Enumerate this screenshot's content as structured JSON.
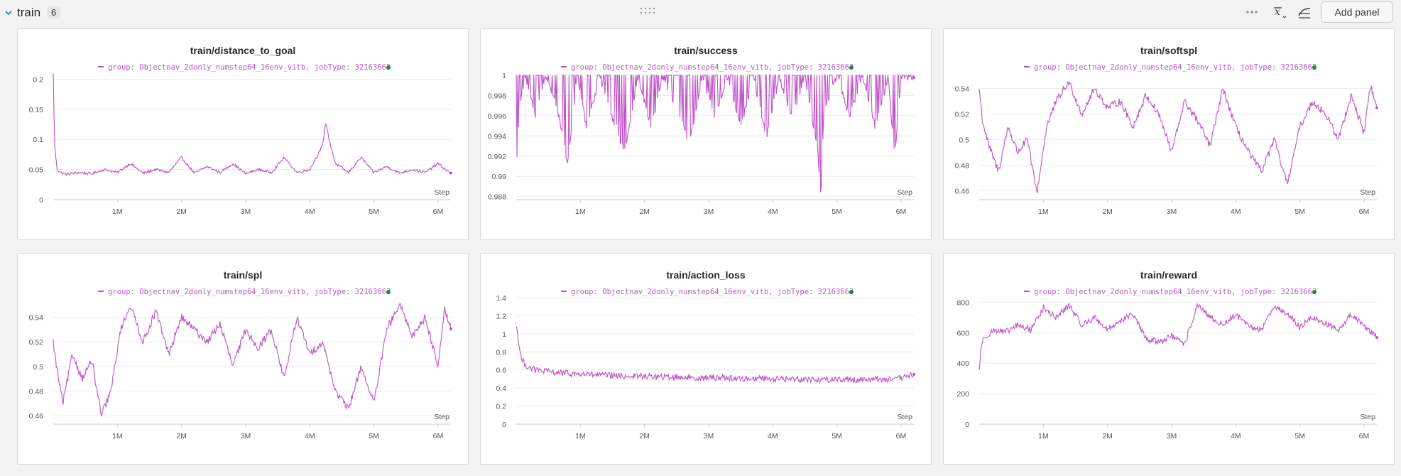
{
  "section": {
    "title": "train",
    "count": "6",
    "add_panel_label": "Add panel"
  },
  "colors": {
    "series": "#c052c8",
    "status_dot": "#1a8a2e"
  },
  "legend": {
    "label": "group: Objectnav_2donly_numstep64_16env_vitb, jobType: 32163663"
  },
  "panels": [
    {
      "title": "train/distance_to_goal",
      "chart_data": {
        "type": "line",
        "x_label": "Step",
        "x_ticks": [
          "1M",
          "2M",
          "3M",
          "4M",
          "5M",
          "6M"
        ],
        "x_range": [
          0,
          6200000
        ],
        "y_ticks": [
          "0.2",
          "0.15",
          "0.1",
          "0.05",
          "0"
        ],
        "y_range": [
          0,
          0.21
        ],
        "series": [
          {
            "name": "group: Objectnav_2donly_numstep64_16env_vitb, jobType: 32163663",
            "x": [
              0,
              20000,
              60000,
              120000,
              200000,
              400000,
              600000,
              800000,
              1000000,
              1200000,
              1400000,
              1600000,
              1800000,
              2000000,
              2200000,
              2400000,
              2600000,
              2800000,
              3000000,
              3200000,
              3400000,
              3600000,
              3800000,
              4000000,
              4200000,
              4250000,
              4300000,
              4400000,
              4600000,
              4800000,
              5000000,
              5200000,
              5400000,
              5600000,
              5800000,
              6000000,
              6200000
            ],
            "y": [
              0.21,
              0.09,
              0.05,
              0.045,
              0.042,
              0.045,
              0.043,
              0.05,
              0.045,
              0.06,
              0.044,
              0.05,
              0.045,
              0.07,
              0.044,
              0.055,
              0.045,
              0.06,
              0.043,
              0.05,
              0.045,
              0.07,
              0.045,
              0.05,
              0.09,
              0.13,
              0.1,
              0.06,
              0.045,
              0.07,
              0.045,
              0.055,
              0.044,
              0.05,
              0.045,
              0.06,
              0.043
            ]
          }
        ]
      }
    },
    {
      "title": "train/success",
      "chart_data": {
        "type": "line",
        "x_label": "Step",
        "x_ticks": [
          "1M",
          "2M",
          "3M",
          "4M",
          "5M",
          "6M"
        ],
        "x_range": [
          0,
          6200000
        ],
        "y_ticks": [
          "1",
          "0.998",
          "0.996",
          "0.994",
          "0.992",
          "0.99",
          "0.988"
        ],
        "y_range": [
          0.9877,
          1.0002
        ],
        "series": [
          {
            "name": "group: Objectnav_2donly_numstep64_16env_vitb, jobType: 32163663",
            "x": [
              0,
              50000,
              150000,
              300000,
              450000,
              600000,
              800000,
              950000,
              1100000,
              1300000,
              1500000,
              1700000,
              1900000,
              2100000,
              2300000,
              2500000,
              2700000,
              2900000,
              3100000,
              3300000,
              3500000,
              3700000,
              3900000,
              4100000,
              4300000,
              4500000,
              4700000,
              4750000,
              4800000,
              5000000,
              5200000,
              5400000,
              5600000,
              5800000,
              5900000,
              6000000,
              6200000
            ],
            "y": [
              0.9903,
              0.997,
              1.0,
              0.996,
              1.0,
              0.998,
              0.9916,
              1.0,
              0.995,
              1.0,
              0.996,
              0.9925,
              1.0,
              0.995,
              1.0,
              0.997,
              0.9932,
              1.0,
              0.996,
              1.0,
              0.995,
              1.0,
              0.994,
              1.0,
              0.996,
              1.0,
              0.993,
              0.988,
              0.997,
              1.0,
              0.996,
              1.0,
              0.995,
              1.0,
              0.9918,
              1.0,
              1.0
            ]
          }
        ]
      }
    },
    {
      "title": "train/softspl",
      "chart_data": {
        "type": "line",
        "x_label": "Step",
        "x_ticks": [
          "1M",
          "2M",
          "3M",
          "4M",
          "5M",
          "6M"
        ],
        "x_range": [
          0,
          6200000
        ],
        "y_ticks": [
          "0.54",
          "0.52",
          "0.5",
          "0.48",
          "0.46"
        ],
        "y_range": [
          0.453,
          0.552
        ],
        "series": [
          {
            "name": "group: Objectnav_2donly_numstep64_16env_vitb, jobType: 32163663",
            "x": [
              0,
              50000,
              150000,
              300000,
              450000,
              600000,
              750000,
              900000,
              1050000,
              1200000,
              1400000,
              1600000,
              1800000,
              2000000,
              2200000,
              2400000,
              2600000,
              2800000,
              3000000,
              3200000,
              3400000,
              3600000,
              3800000,
              4000000,
              4200000,
              4400000,
              4600000,
              4800000,
              5000000,
              5200000,
              5400000,
              5600000,
              5800000,
              6000000,
              6100000,
              6200000
            ],
            "y": [
              0.54,
              0.515,
              0.495,
              0.475,
              0.51,
              0.49,
              0.5,
              0.458,
              0.51,
              0.53,
              0.545,
              0.52,
              0.54,
              0.525,
              0.53,
              0.51,
              0.535,
              0.52,
              0.49,
              0.53,
              0.515,
              0.495,
              0.54,
              0.51,
              0.49,
              0.475,
              0.5,
              0.465,
              0.51,
              0.53,
              0.52,
              0.5,
              0.535,
              0.505,
              0.543,
              0.524
            ]
          }
        ]
      }
    },
    {
      "title": "train/spl",
      "chart_data": {
        "type": "line",
        "x_label": "Step",
        "x_ticks": [
          "1M",
          "2M",
          "3M",
          "4M",
          "5M",
          "6M"
        ],
        "x_range": [
          0,
          6200000
        ],
        "y_ticks": [
          "0.54",
          "0.52",
          "0.5",
          "0.48",
          "0.46"
        ],
        "y_range": [
          0.453,
          0.556
        ],
        "series": [
          {
            "name": "group: Objectnav_2donly_numstep64_16env_vitb, jobType: 32163663",
            "x": [
              0,
              50000,
              150000,
              300000,
              450000,
              600000,
              750000,
              900000,
              1050000,
              1200000,
              1400000,
              1600000,
              1800000,
              2000000,
              2200000,
              2400000,
              2600000,
              2800000,
              3000000,
              3200000,
              3400000,
              3600000,
              3800000,
              4000000,
              4200000,
              4400000,
              4600000,
              4800000,
              5000000,
              5200000,
              5400000,
              5600000,
              5800000,
              6000000,
              6100000,
              6200000
            ],
            "y": [
              0.52,
              0.5,
              0.47,
              0.51,
              0.49,
              0.505,
              0.46,
              0.48,
              0.53,
              0.55,
              0.52,
              0.545,
              0.51,
              0.54,
              0.53,
              0.52,
              0.535,
              0.5,
              0.53,
              0.515,
              0.53,
              0.49,
              0.54,
              0.51,
              0.52,
              0.48,
              0.465,
              0.5,
              0.47,
              0.53,
              0.55,
              0.525,
              0.54,
              0.5,
              0.548,
              0.53
            ]
          }
        ]
      }
    },
    {
      "title": "train/action_loss",
      "chart_data": {
        "type": "line",
        "x_label": "Step",
        "x_ticks": [
          "1M",
          "2M",
          "3M",
          "4M",
          "5M",
          "6M"
        ],
        "x_range": [
          0,
          6200000
        ],
        "y_ticks": [
          "1.4",
          "1.2",
          "1",
          "0.8",
          "0.6",
          "0.4",
          "0.2",
          "0"
        ],
        "y_range": [
          0,
          1.4
        ],
        "series": [
          {
            "name": "group: Objectnav_2donly_numstep64_16env_vitb, jobType: 32163663",
            "x": [
              0,
              30000,
              80000,
              150000,
              300000,
              500000,
              800000,
              1100000,
              1400000,
              1700000,
              2000000,
              2300000,
              2600000,
              2900000,
              3200000,
              3500000,
              3800000,
              4100000,
              4400000,
              4700000,
              5000000,
              5300000,
              5600000,
              5900000,
              6200000
            ],
            "y": [
              1.1,
              0.95,
              0.72,
              0.65,
              0.6,
              0.58,
              0.56,
              0.55,
              0.54,
              0.53,
              0.53,
              0.52,
              0.52,
              0.51,
              0.52,
              0.5,
              0.51,
              0.5,
              0.5,
              0.49,
              0.5,
              0.49,
              0.5,
              0.49,
              0.55
            ]
          }
        ]
      }
    },
    {
      "title": "train/reward",
      "chart_data": {
        "type": "line",
        "x_label": "Step",
        "x_ticks": [
          "1M",
          "2M",
          "3M",
          "4M",
          "5M",
          "6M"
        ],
        "x_range": [
          0,
          6200000
        ],
        "y_ticks": [
          "800",
          "600",
          "400",
          "200",
          "0"
        ],
        "y_range": [
          0,
          830
        ],
        "series": [
          {
            "name": "group: Objectnav_2donly_numstep64_16env_vitb, jobType: 32163663",
            "x": [
              0,
              30000,
              100000,
              250000,
              400000,
              600000,
              800000,
              1000000,
              1200000,
              1400000,
              1600000,
              1800000,
              2000000,
              2200000,
              2400000,
              2600000,
              2800000,
              3000000,
              3200000,
              3400000,
              3600000,
              3800000,
              4000000,
              4200000,
              4400000,
              4600000,
              4800000,
              5000000,
              5200000,
              5400000,
              5600000,
              5800000,
              6000000,
              6200000
            ],
            "y": [
              350,
              520,
              580,
              620,
              600,
              650,
              620,
              760,
              700,
              780,
              650,
              700,
              620,
              680,
              720,
              560,
              540,
              580,
              520,
              780,
              700,
              650,
              720,
              640,
              620,
              780,
              720,
              640,
              700,
              660,
              620,
              720,
              650,
              570
            ]
          }
        ]
      }
    }
  ]
}
